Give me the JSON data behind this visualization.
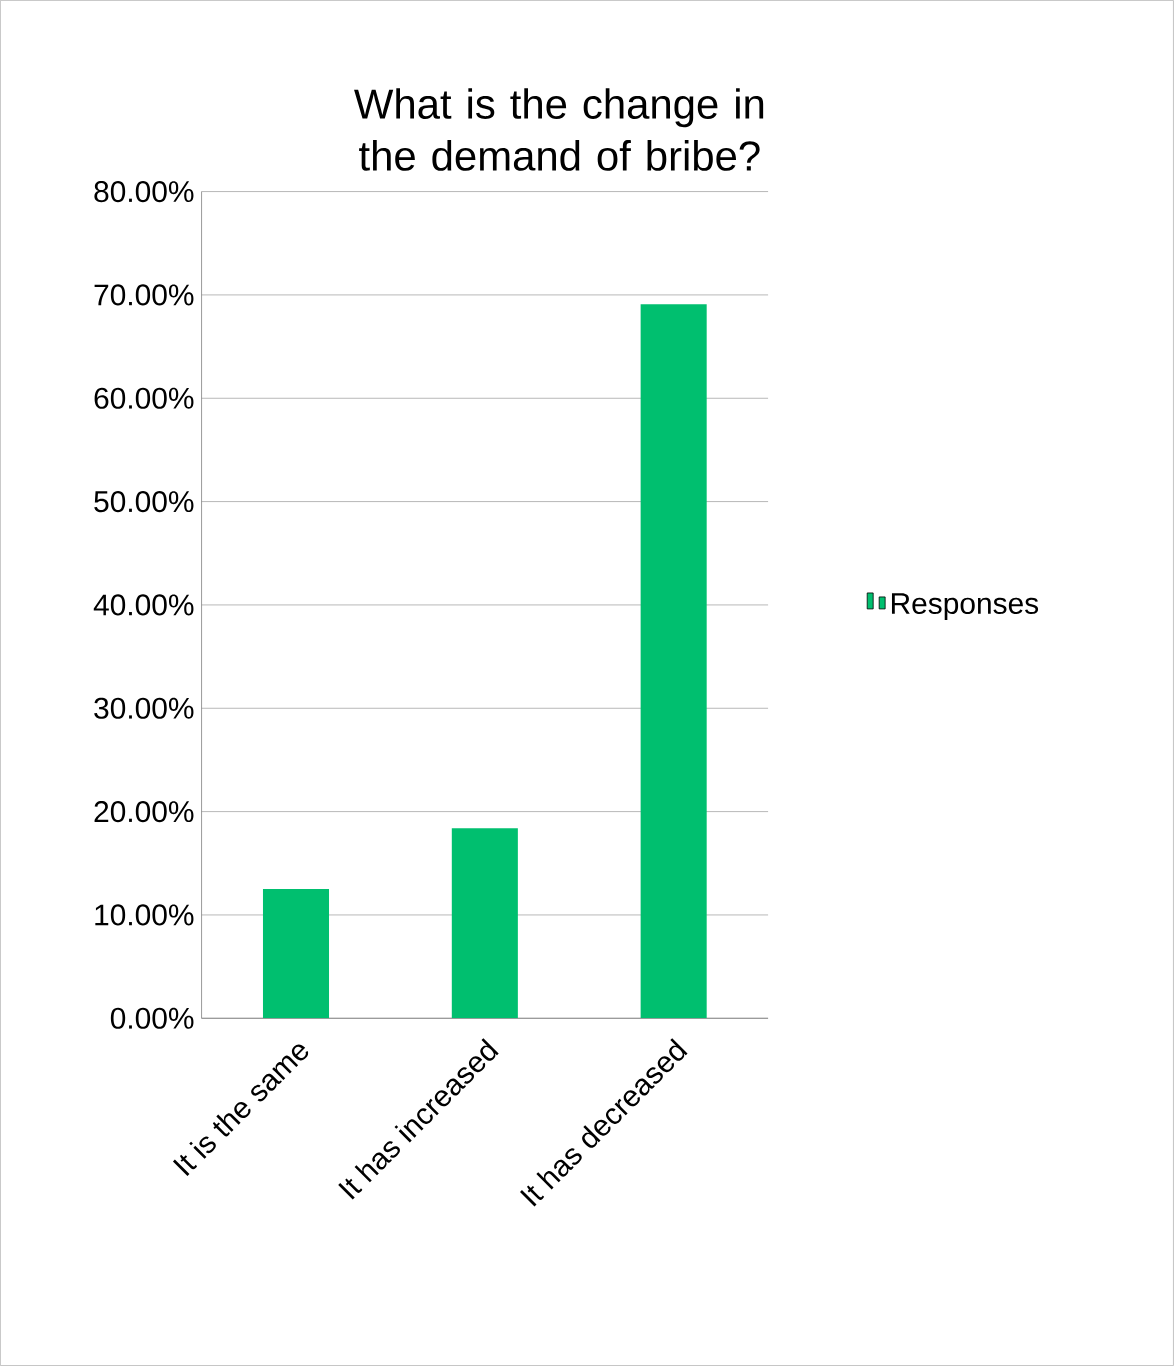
{
  "chart_data": {
    "type": "bar",
    "title": "What is the change in the demand of bribe?",
    "categories": [
      "It is the same",
      "It has increased",
      "It has decreased"
    ],
    "series": [
      {
        "name": "Responses",
        "color": "#00bf6f",
        "values": [
          12.5,
          18.4,
          69.1
        ]
      }
    ],
    "ylim": [
      0,
      80
    ],
    "yticks": [
      {
        "value": 0,
        "label": "0.00%"
      },
      {
        "value": 10,
        "label": "10.00%"
      },
      {
        "value": 20,
        "label": "20.00%"
      },
      {
        "value": 30,
        "label": "30.00%"
      },
      {
        "value": 40,
        "label": "40.00%"
      },
      {
        "value": 50,
        "label": "50.00%"
      },
      {
        "value": 60,
        "label": "60.00%"
      },
      {
        "value": 70,
        "label": "70.00%"
      },
      {
        "value": 80,
        "label": "80.00%"
      }
    ],
    "grid": "y",
    "legend": "right"
  }
}
